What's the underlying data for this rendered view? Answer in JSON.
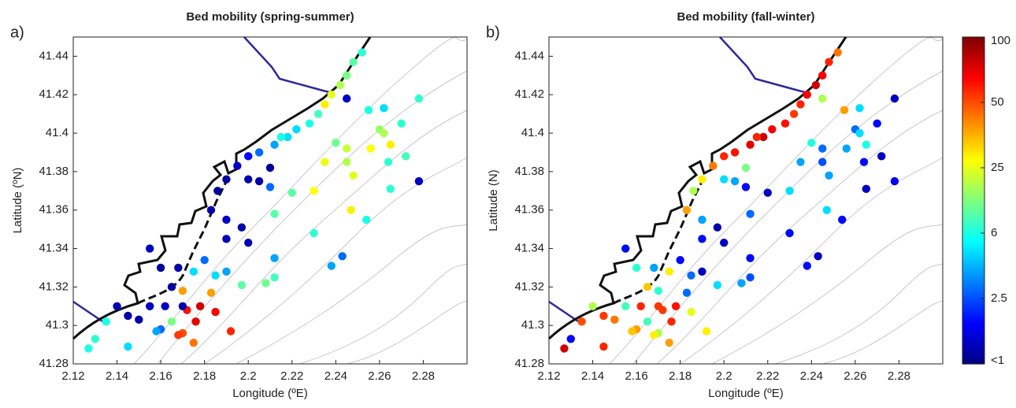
{
  "chart_data": [
    {
      "type": "scatter",
      "panel_label": "a)",
      "title": "Bed mobility (spring-summer)",
      "xlabel": "Longitude (ºE)",
      "ylabel": "Latitude (ºN)",
      "xlim": [
        2.12,
        2.3
      ],
      "ylim": [
        41.28,
        41.45
      ],
      "xticks": [
        2.12,
        2.14,
        2.16,
        2.18,
        2.2,
        2.22,
        2.24,
        2.26,
        2.28
      ],
      "yticks": [
        41.28,
        41.3,
        41.32,
        41.34,
        41.36,
        41.38,
        41.4,
        41.42,
        41.44
      ],
      "x": [
        2.252,
        2.248,
        2.245,
        2.242,
        2.238,
        2.235,
        2.232,
        2.228,
        2.222,
        2.218,
        2.212,
        2.205,
        2.2,
        2.195,
        2.19,
        2.186,
        2.245,
        2.255,
        2.262,
        2.278,
        2.26,
        2.262,
        2.27,
        2.265,
        2.256,
        2.245,
        2.24,
        2.235,
        2.245,
        2.264,
        2.272,
        2.278,
        2.265,
        2.248,
        2.23,
        2.22,
        2.21,
        2.21,
        2.212,
        2.247,
        2.254,
        2.23,
        2.212,
        2.243,
        2.238,
        2.212,
        2.208,
        2.197,
        2.192,
        2.185,
        2.178,
        2.176,
        2.172,
        2.17,
        2.16,
        2.165,
        2.175,
        2.168,
        2.158,
        2.15,
        2.155,
        2.145,
        2.14,
        2.135,
        2.13,
        2.127,
        2.145,
        2.162,
        2.165,
        2.168,
        2.16,
        2.155,
        2.17,
        2.175,
        2.183,
        2.18,
        2.185,
        2.19,
        2.19,
        2.19,
        2.197,
        2.2,
        2.183,
        2.2,
        2.205,
        2.215,
        2.17
      ],
      "y": [
        41.442,
        41.437,
        41.43,
        41.425,
        41.42,
        41.415,
        41.41,
        41.405,
        41.402,
        41.398,
        41.394,
        41.39,
        41.388,
        41.383,
        41.376,
        41.37,
        41.418,
        41.412,
        41.413,
        41.418,
        41.402,
        41.4,
        41.405,
        41.394,
        41.392,
        41.392,
        41.395,
        41.385,
        41.385,
        41.385,
        41.388,
        41.375,
        41.371,
        41.378,
        41.37,
        41.369,
        41.382,
        41.372,
        41.358,
        41.36,
        41.355,
        41.348,
        41.335,
        41.336,
        41.331,
        41.325,
        41.322,
        41.321,
        41.297,
        41.307,
        41.31,
        41.302,
        41.308,
        41.296,
        41.298,
        41.302,
        41.291,
        41.295,
        41.297,
        41.303,
        41.31,
        41.305,
        41.31,
        41.302,
        41.293,
        41.288,
        41.289,
        41.31,
        41.32,
        41.33,
        41.33,
        41.34,
        41.318,
        41.328,
        41.317,
        41.334,
        41.326,
        41.328,
        41.355,
        41.345,
        41.351,
        41.343,
        41.36,
        41.376,
        41.375,
        41.398,
        41.31
      ],
      "values": [
        8,
        12,
        15,
        20,
        25,
        30,
        10,
        6,
        5,
        5,
        4,
        3,
        2,
        1.5,
        1.2,
        1.2,
        1.5,
        6,
        5,
        8,
        18,
        20,
        8,
        30,
        28,
        22,
        14,
        26,
        20,
        8,
        10,
        1.5,
        8,
        25,
        28,
        12,
        1.2,
        3,
        12,
        30,
        6,
        8,
        4,
        3,
        4,
        10,
        14,
        12,
        60,
        70,
        80,
        75,
        65,
        50,
        3,
        15,
        45,
        55,
        4,
        1.3,
        1.5,
        1.3,
        1.4,
        6,
        8,
        6,
        5,
        1.5,
        1.2,
        1.3,
        1.2,
        1.5,
        40,
        5,
        40,
        3,
        5,
        4,
        1.5,
        1.4,
        1.3,
        1.4,
        1.3,
        1.3,
        1.3,
        6,
        1.3
      ]
    },
    {
      "type": "scatter",
      "panel_label": "b)",
      "title": "Bed mobility (fall-winter)",
      "xlabel": "Longitude (ºE)",
      "ylabel": "Latitude (N)",
      "xlim": [
        2.12,
        2.3
      ],
      "ylim": [
        41.28,
        41.45
      ],
      "xticks": [
        2.12,
        2.14,
        2.16,
        2.18,
        2.2,
        2.22,
        2.24,
        2.26,
        2.28
      ],
      "yticks": [
        41.28,
        41.3,
        41.32,
        41.34,
        41.36,
        41.38,
        41.4,
        41.42,
        41.44
      ],
      "x": [
        2.252,
        2.248,
        2.245,
        2.242,
        2.238,
        2.235,
        2.232,
        2.228,
        2.222,
        2.218,
        2.212,
        2.205,
        2.2,
        2.195,
        2.19,
        2.186,
        2.245,
        2.255,
        2.262,
        2.278,
        2.26,
        2.262,
        2.27,
        2.265,
        2.256,
        2.245,
        2.24,
        2.235,
        2.245,
        2.264,
        2.272,
        2.278,
        2.265,
        2.248,
        2.23,
        2.22,
        2.21,
        2.21,
        2.212,
        2.247,
        2.254,
        2.23,
        2.212,
        2.243,
        2.238,
        2.212,
        2.208,
        2.197,
        2.192,
        2.185,
        2.178,
        2.176,
        2.172,
        2.17,
        2.16,
        2.165,
        2.175,
        2.168,
        2.158,
        2.15,
        2.155,
        2.145,
        2.14,
        2.135,
        2.13,
        2.127,
        2.145,
        2.162,
        2.165,
        2.168,
        2.16,
        2.155,
        2.17,
        2.175,
        2.183,
        2.18,
        2.185,
        2.19,
        2.19,
        2.19,
        2.197,
        2.2,
        2.183,
        2.2,
        2.205,
        2.215,
        2.17
      ],
      "y": [
        41.442,
        41.437,
        41.43,
        41.425,
        41.42,
        41.415,
        41.41,
        41.405,
        41.402,
        41.398,
        41.394,
        41.39,
        41.388,
        41.383,
        41.376,
        41.37,
        41.418,
        41.412,
        41.413,
        41.418,
        41.402,
        41.4,
        41.405,
        41.394,
        41.392,
        41.392,
        41.395,
        41.385,
        41.385,
        41.385,
        41.388,
        41.375,
        41.371,
        41.378,
        41.37,
        41.369,
        41.382,
        41.372,
        41.358,
        41.36,
        41.355,
        41.348,
        41.335,
        41.336,
        41.331,
        41.325,
        41.322,
        41.321,
        41.297,
        41.307,
        41.31,
        41.302,
        41.308,
        41.296,
        41.298,
        41.302,
        41.291,
        41.295,
        41.297,
        41.303,
        41.31,
        41.305,
        41.31,
        41.302,
        41.293,
        41.288,
        41.289,
        41.31,
        41.32,
        41.33,
        41.33,
        41.34,
        41.318,
        41.328,
        41.317,
        41.334,
        41.326,
        41.328,
        41.355,
        41.345,
        41.351,
        41.343,
        41.36,
        41.376,
        41.375,
        41.398,
        41.31
      ],
      "values": [
        45,
        60,
        70,
        80,
        70,
        60,
        55,
        65,
        70,
        80,
        75,
        65,
        60,
        45,
        30,
        20,
        20,
        40,
        5,
        1.5,
        3,
        5,
        2,
        6,
        4,
        3,
        7,
        4,
        2.5,
        2,
        1.5,
        1.8,
        1.5,
        4,
        5,
        1.5,
        15,
        2,
        3,
        5,
        2,
        2,
        2,
        1.5,
        2,
        2.5,
        4,
        5,
        30,
        25,
        65,
        60,
        55,
        20,
        40,
        10,
        40,
        30,
        35,
        45,
        10,
        55,
        20,
        50,
        2,
        80,
        60,
        60,
        35,
        4,
        8,
        2,
        8,
        30,
        3,
        2,
        3,
        1.5,
        4,
        2,
        1.3,
        1.5,
        40,
        5,
        4,
        60,
        55
      ]
    }
  ],
  "colorbar": {
    "ticks": [
      {
        "value": 1,
        "label": "<1"
      },
      2.5,
      6,
      25,
      50,
      100
    ]
  }
}
